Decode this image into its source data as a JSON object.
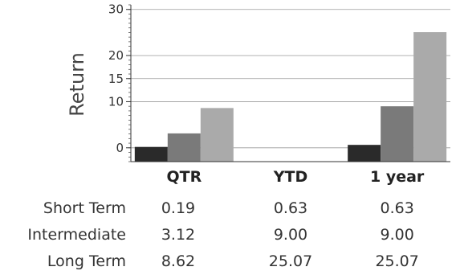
{
  "chart_data": {
    "type": "bar",
    "ylabel": "Return",
    "categories": [
      "QTR",
      "YTD",
      "1 year"
    ],
    "yticks": [
      0,
      10,
      15,
      20,
      30
    ],
    "ylim": [
      -3,
      31
    ],
    "grid": true,
    "series": [
      {
        "name": "Short Term",
        "color": "#2a2a2a",
        "values": [
          0.19,
          null,
          0.63
        ]
      },
      {
        "name": "Intermediate",
        "color": "#7a7a7a",
        "values": [
          3.12,
          null,
          9.0
        ]
      },
      {
        "name": "Long Term",
        "color": "#aaaaaa",
        "values": [
          8.62,
          null,
          25.07
        ]
      }
    ],
    "table": {
      "rows": [
        {
          "label": "Short Term",
          "cells": [
            "0.19",
            "0.63",
            "0.63"
          ]
        },
        {
          "label": "Intermediate",
          "cells": [
            "3.12",
            "9.00",
            "9.00"
          ]
        },
        {
          "label": "Long Term",
          "cells": [
            "8.62",
            "25.07",
            "25.07"
          ]
        }
      ]
    }
  }
}
